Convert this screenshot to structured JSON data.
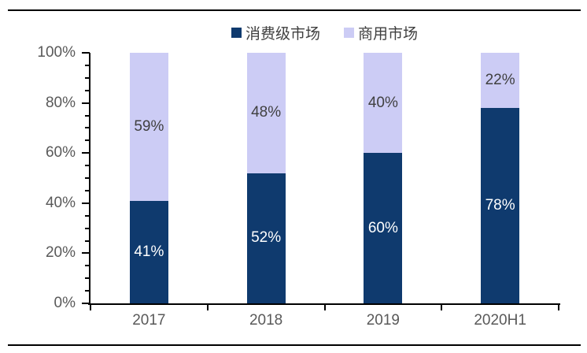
{
  "chart_data": {
    "type": "bar",
    "stacked": true,
    "stacked_percent": true,
    "categories": [
      "2017",
      "2018",
      "2019",
      "2020H1"
    ],
    "series": [
      {
        "name": "消费级市场",
        "color": "#0F3A6E",
        "label_color": "#FFFFFF",
        "values": [
          41,
          52,
          60,
          78
        ],
        "labels": [
          "41%",
          "52%",
          "60%",
          "78%"
        ]
      },
      {
        "name": "商用市场",
        "color": "#CCCCF5",
        "label_color": "#404040",
        "values": [
          59,
          48,
          40,
          22
        ],
        "labels": [
          "59%",
          "48%",
          "40%",
          "22%"
        ]
      }
    ],
    "ylim": [
      0,
      100
    ],
    "y_major_step": 20,
    "y_minor_step": 5,
    "ytick_labels": [
      "0%",
      "20%",
      "40%",
      "60%",
      "80%",
      "100%"
    ],
    "xlabel": "",
    "ylabel": "",
    "title": "",
    "legend_position": "top",
    "grid": false,
    "axis_color": "#000000",
    "tick_label_color": "#595959"
  }
}
